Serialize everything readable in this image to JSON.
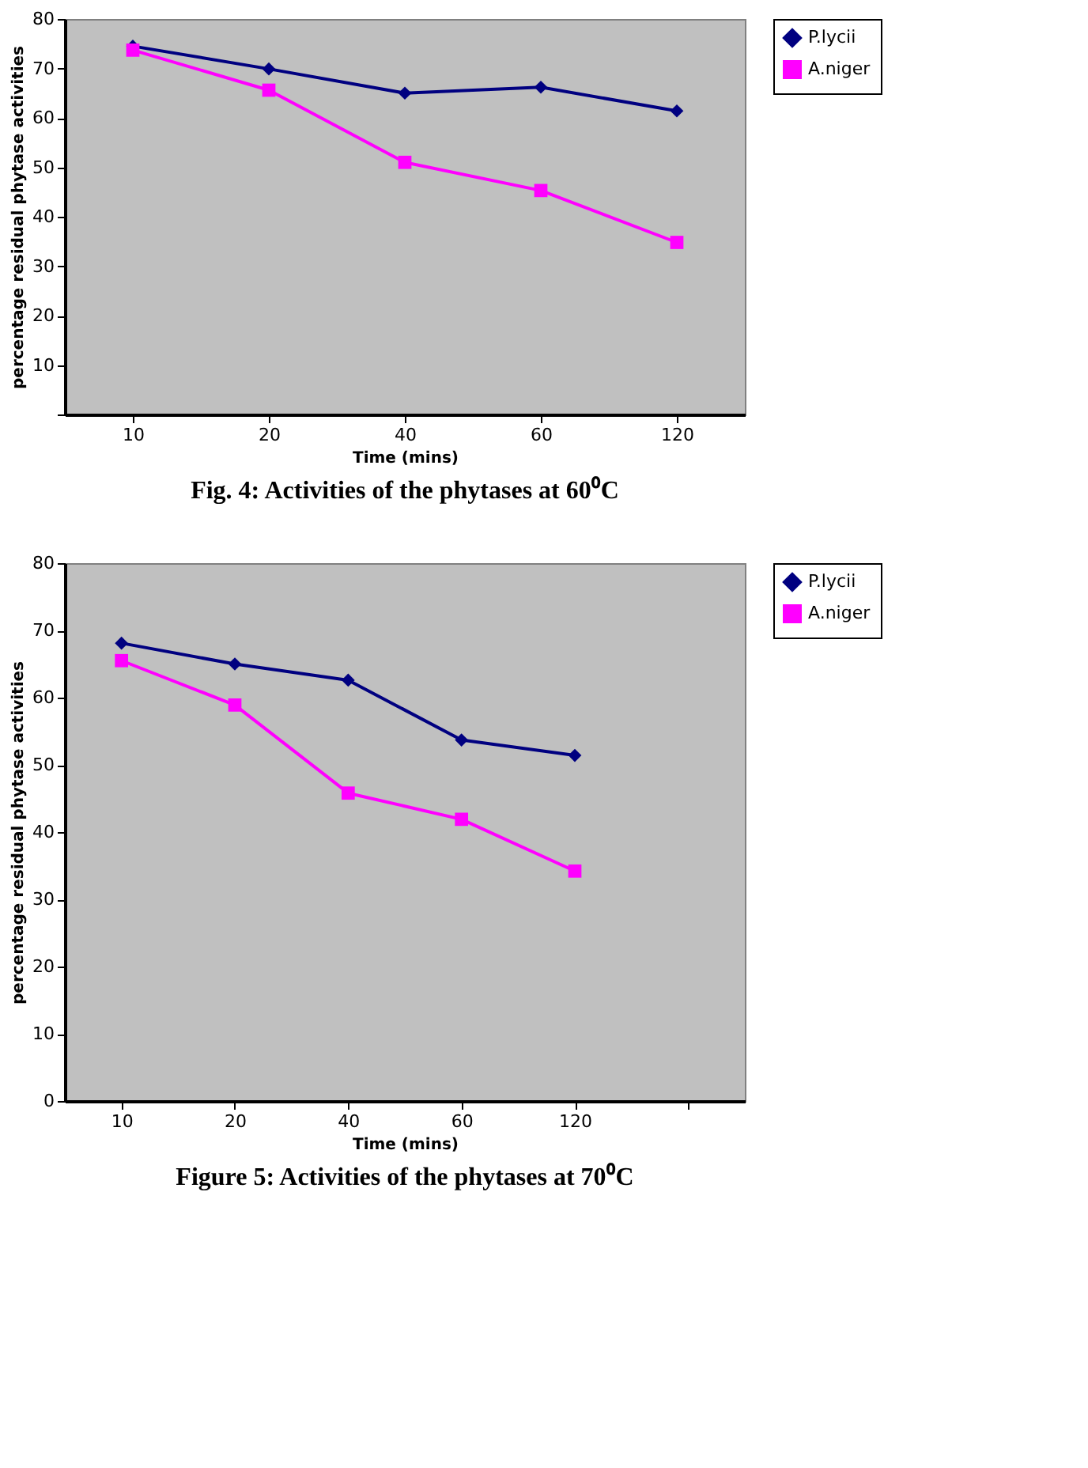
{
  "chart_data": [
    {
      "type": "line",
      "title": "Fig. 4: Activities of the phytases at 60⁰C",
      "xlabel": "Time (mins)",
      "ylabel": "percentage residual phytase activities",
      "categories": [
        "10",
        "20",
        "40",
        "60",
        "120"
      ],
      "series": [
        {
          "name": "P.lycii",
          "color": "#000080",
          "marker": "diamond",
          "values": [
            74.5,
            69.9,
            65.0,
            66.2,
            61.4
          ]
        },
        {
          "name": "A.niger",
          "color": "#ff00ff",
          "marker": "square",
          "values": [
            73.7,
            65.6,
            51.0,
            45.3,
            34.8
          ]
        }
      ],
      "ylim": [
        0,
        80
      ],
      "yticks": [
        {
          "value": 0,
          "label": null
        },
        10,
        20,
        30,
        40,
        50,
        60,
        70,
        80
      ],
      "grid": false,
      "legend": "right",
      "line_style": "solid"
    },
    {
      "type": "line",
      "title": "Figure 5: Activities of the phytases at 70⁰C",
      "xlabel": "Time (mins)",
      "ylabel": "percentage residual phytase activities",
      "categories": [
        "10",
        "20",
        "40",
        "60",
        "120",
        null
      ],
      "series": [
        {
          "name": "P.lycii",
          "color": "#000080",
          "marker": "diamond",
          "values": [
            68.1,
            65.0,
            62.6,
            53.7,
            51.4,
            null
          ]
        },
        {
          "name": "A.niger",
          "color": "#ff00ff",
          "marker": "square",
          "values": [
            65.5,
            58.9,
            45.8,
            41.9,
            34.2,
            null
          ]
        }
      ],
      "ylim": [
        0,
        80
      ],
      "yticks": [
        0,
        10,
        20,
        30,
        40,
        50,
        60,
        70,
        80
      ],
      "grid": false,
      "legend": "right",
      "line_style": "solid"
    }
  ]
}
